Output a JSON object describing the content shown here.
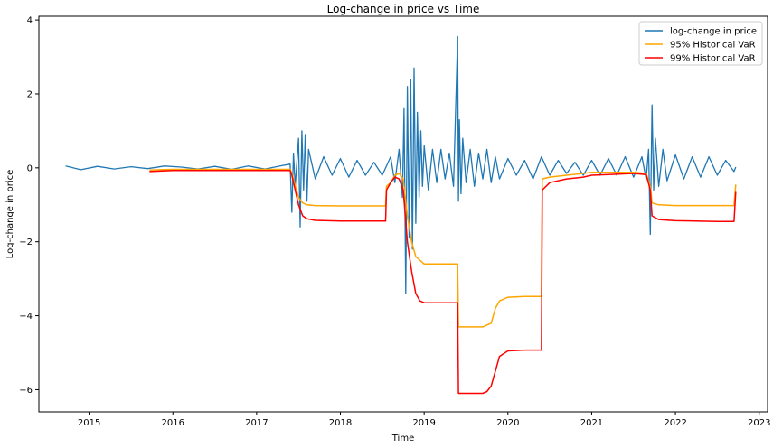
{
  "chart_data": {
    "type": "line",
    "title": "Log-change in price vs Time",
    "xlabel": "Time",
    "ylabel": "Log-change in price",
    "xlim": [
      2014.4,
      2023.1
    ],
    "ylim": [
      -6.6,
      4.1
    ],
    "x_ticks": [
      2015,
      2016,
      2017,
      2018,
      2019,
      2020,
      2021,
      2022,
      2023
    ],
    "x_tick_labels": [
      "2015",
      "2016",
      "2017",
      "2018",
      "2019",
      "2020",
      "2021",
      "2022",
      "2023"
    ],
    "y_ticks": [
      -6,
      -4,
      -2,
      0,
      2,
      4
    ],
    "y_tick_labels": [
      "−6",
      "−4",
      "−2",
      "0",
      "2",
      "4"
    ],
    "grid": false,
    "legend_position": "top-right",
    "colors": {
      "log_change": "#1f77b4",
      "var95": "#ffa500",
      "var99": "#ff0000"
    },
    "series": [
      {
        "name": "log-change in price",
        "color": "#1f77b4",
        "x": [
          2014.72,
          2014.9,
          2015.1,
          2015.3,
          2015.5,
          2015.7,
          2015.9,
          2016.1,
          2016.3,
          2016.5,
          2016.7,
          2016.9,
          2017.1,
          2017.3,
          2017.4,
          2017.42,
          2017.44,
          2017.46,
          2017.5,
          2017.52,
          2017.54,
          2017.56,
          2017.58,
          2017.6,
          2017.62,
          2017.7,
          2017.8,
          2017.9,
          2018.0,
          2018.1,
          2018.2,
          2018.3,
          2018.4,
          2018.5,
          2018.6,
          2018.65,
          2018.7,
          2018.74,
          2018.76,
          2018.78,
          2018.8,
          2018.82,
          2018.84,
          2018.86,
          2018.88,
          2018.9,
          2018.92,
          2018.94,
          2018.96,
          2018.98,
          2019.0,
          2019.05,
          2019.1,
          2019.15,
          2019.2,
          2019.25,
          2019.3,
          2019.35,
          2019.4,
          2019.41,
          2019.42,
          2019.44,
          2019.46,
          2019.5,
          2019.55,
          2019.6,
          2019.65,
          2019.7,
          2019.75,
          2019.8,
          2019.85,
          2019.9,
          2020.0,
          2020.1,
          2020.2,
          2020.3,
          2020.4,
          2020.5,
          2020.6,
          2020.7,
          2020.8,
          2020.9,
          2021.0,
          2021.1,
          2021.2,
          2021.3,
          2021.4,
          2021.5,
          2021.6,
          2021.65,
          2021.68,
          2021.7,
          2021.72,
          2021.74,
          2021.76,
          2021.8,
          2021.85,
          2021.9,
          2022.0,
          2022.1,
          2022.2,
          2022.3,
          2022.4,
          2022.5,
          2022.6,
          2022.7,
          2022.72
        ],
        "y": [
          0.05,
          -0.05,
          0.04,
          -0.03,
          0.03,
          -0.02,
          0.05,
          0.02,
          -0.03,
          0.04,
          -0.04,
          0.05,
          -0.03,
          0.06,
          0.1,
          -1.2,
          0.4,
          -0.5,
          0.8,
          -1.6,
          1.0,
          -0.6,
          0.9,
          -0.9,
          0.5,
          -0.3,
          0.3,
          -0.2,
          0.25,
          -0.25,
          0.2,
          -0.2,
          0.15,
          -0.2,
          0.3,
          -0.4,
          0.5,
          -0.8,
          1.6,
          -3.4,
          2.2,
          -1.9,
          2.4,
          -2.2,
          2.7,
          -1.5,
          1.5,
          -0.8,
          1.0,
          -0.5,
          0.6,
          -0.6,
          0.5,
          -0.4,
          0.5,
          -0.3,
          0.4,
          -0.5,
          3.55,
          -0.9,
          1.3,
          -0.7,
          0.8,
          -0.4,
          0.5,
          -0.5,
          0.4,
          -0.3,
          0.5,
          -0.4,
          0.3,
          -0.3,
          0.25,
          -0.2,
          0.2,
          -0.3,
          0.3,
          -0.2,
          0.2,
          -0.15,
          0.15,
          -0.2,
          0.2,
          -0.2,
          0.25,
          -0.2,
          0.3,
          -0.25,
          0.3,
          -0.3,
          0.5,
          -1.8,
          1.7,
          -0.6,
          0.8,
          -0.5,
          0.5,
          -0.35,
          0.35,
          -0.3,
          0.3,
          -0.25,
          0.3,
          -0.2,
          0.2,
          -0.1,
          0.02
        ]
      },
      {
        "name": "95% Historical VaR",
        "color": "#ffa500",
        "x": [
          2015.72,
          2016.0,
          2017.0,
          2017.4,
          2017.42,
          2017.5,
          2017.55,
          2017.6,
          2017.7,
          2018.0,
          2018.54,
          2018.55,
          2018.6,
          2018.65,
          2018.7,
          2018.75,
          2018.8,
          2018.85,
          2018.9,
          2018.95,
          2019.0,
          2019.4,
          2019.41,
          2019.7,
          2019.8,
          2019.85,
          2019.9,
          2020.0,
          2020.2,
          2020.4,
          2020.41,
          2020.5,
          2020.7,
          2020.9,
          2021.0,
          2021.2,
          2021.5,
          2021.65,
          2021.7,
          2021.72,
          2021.8,
          2022.0,
          2022.5,
          2022.7,
          2022.72
        ],
        "y": [
          -0.06,
          -0.04,
          -0.04,
          -0.04,
          -0.15,
          -0.8,
          -0.95,
          -1.0,
          -1.02,
          -1.03,
          -1.03,
          -0.5,
          -0.4,
          -0.2,
          -0.15,
          -0.3,
          -1.3,
          -2.0,
          -2.4,
          -2.5,
          -2.6,
          -2.6,
          -4.3,
          -4.3,
          -4.2,
          -3.8,
          -3.6,
          -3.5,
          -3.48,
          -3.48,
          -0.3,
          -0.25,
          -0.2,
          -0.15,
          -0.12,
          -0.12,
          -0.12,
          -0.15,
          -0.5,
          -0.95,
          -1.0,
          -1.02,
          -1.02,
          -1.02,
          -0.45
        ]
      },
      {
        "name": "99% Historical VaR",
        "color": "#ff0000",
        "x": [
          2015.72,
          2016.0,
          2017.0,
          2017.4,
          2017.42,
          2017.5,
          2017.55,
          2017.6,
          2017.7,
          2018.0,
          2018.54,
          2018.55,
          2018.6,
          2018.65,
          2018.7,
          2018.75,
          2018.8,
          2018.85,
          2018.9,
          2018.95,
          2019.0,
          2019.4,
          2019.41,
          2019.7,
          2019.75,
          2019.8,
          2019.85,
          2019.9,
          2020.0,
          2020.2,
          2020.4,
          2020.41,
          2020.5,
          2020.7,
          2020.9,
          2021.0,
          2021.2,
          2021.5,
          2021.65,
          2021.7,
          2021.72,
          2021.8,
          2022.0,
          2022.5,
          2022.7,
          2022.72
        ],
        "y": [
          -0.1,
          -0.07,
          -0.07,
          -0.07,
          -0.2,
          -1.0,
          -1.3,
          -1.38,
          -1.42,
          -1.44,
          -1.44,
          -0.6,
          -0.4,
          -0.25,
          -0.3,
          -0.6,
          -2.0,
          -2.8,
          -3.4,
          -3.6,
          -3.65,
          -3.65,
          -6.1,
          -6.1,
          -6.05,
          -5.9,
          -5.5,
          -5.1,
          -4.95,
          -4.93,
          -4.93,
          -0.6,
          -0.4,
          -0.3,
          -0.25,
          -0.2,
          -0.18,
          -0.15,
          -0.18,
          -0.6,
          -1.3,
          -1.4,
          -1.43,
          -1.45,
          -1.45,
          -0.65
        ]
      }
    ]
  }
}
